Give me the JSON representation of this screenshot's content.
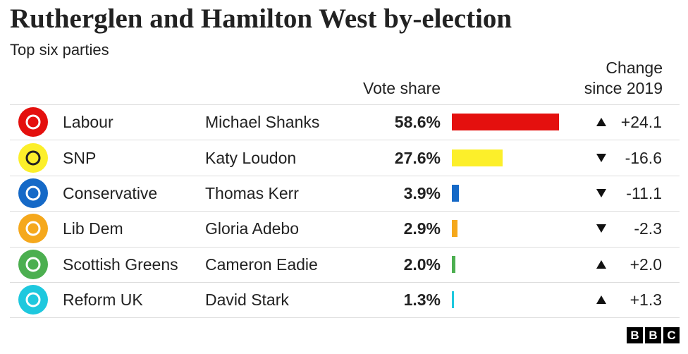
{
  "chart_data": {
    "type": "bar",
    "title": "Rutherglen and Hamilton West by-election",
    "subtitle": "Top six parties",
    "value_header": "Vote share",
    "change_header": "Change since 2019",
    "categories": [
      "Labour",
      "SNP",
      "Conservative",
      "Lib Dem",
      "Scottish Greens",
      "Reform UK"
    ],
    "candidates": [
      "Michael Shanks",
      "Katy Loudon",
      "Thomas Kerr",
      "Gloria Adebo",
      "Cameron Eadie",
      "David Stark"
    ],
    "values": [
      58.6,
      27.6,
      3.9,
      2.9,
      2.0,
      1.3
    ],
    "value_labels": [
      "58.6%",
      "27.6%",
      "3.9%",
      "2.9%",
      "2.0%",
      "1.3%"
    ],
    "colors": [
      "#e4100e",
      "#fcef2a",
      "#1569c7",
      "#f5a81c",
      "#4caf50",
      "#1ec8de"
    ],
    "change": [
      24.1,
      -16.6,
      -11.1,
      -2.3,
      2.0,
      1.3
    ],
    "change_labels": [
      "+24.1",
      "-16.6",
      "-11.1",
      "-2.3",
      "+2.0",
      "+1.3"
    ],
    "logo": [
      "B",
      "B",
      "C"
    ]
  }
}
